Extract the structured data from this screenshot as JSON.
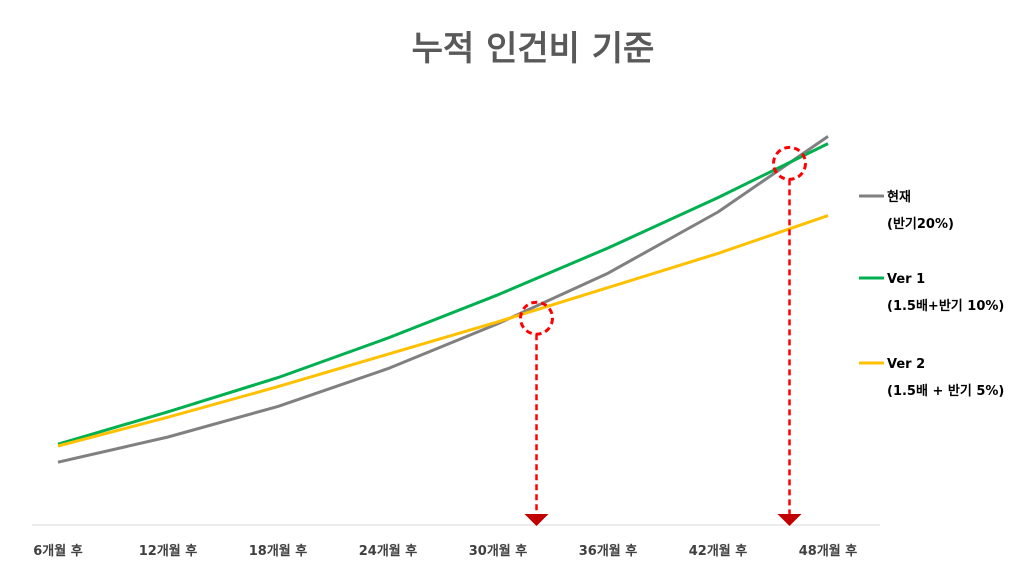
{
  "chart_data": {
    "type": "line",
    "title": "누적 인건비 기준",
    "xlabel": "",
    "ylabel": "",
    "categories": [
      "6개월 후",
      "12개월 후",
      "18개월 후",
      "24개월 후",
      "30개월 후",
      "36개월 후",
      "42개월 후",
      "48개월 후"
    ],
    "ylim": [
      0,
      100
    ],
    "grid": false,
    "legend_position": "right",
    "series": [
      {
        "name_line1": "현재",
        "name_line2": "(반기20%)",
        "color": "#808080",
        "values": [
          10.5,
          17.5,
          26,
          36.5,
          49,
          63,
          80,
          101
        ]
      },
      {
        "name_line1": "Ver 1",
        "name_line2": "(1.5배+반기 10%)",
        "color": "#00B050",
        "values": [
          15.5,
          24.5,
          34,
          45,
          57,
          70,
          84,
          99
        ]
      },
      {
        "name_line1": "Ver 2",
        "name_line2": "(1.5배 + 반기 5%)",
        "color": "#FFC000",
        "values": [
          15,
          23,
          31.5,
          40.5,
          49.5,
          59,
          68.5,
          79
        ]
      }
    ],
    "annotations": [
      {
        "type": "crossover-marker",
        "x_index": 4.35,
        "y": 50.5,
        "color": "#FF0000"
      },
      {
        "type": "crossover-marker",
        "x_index": 6.65,
        "y": 93.5,
        "color": "#FF0000"
      }
    ]
  }
}
